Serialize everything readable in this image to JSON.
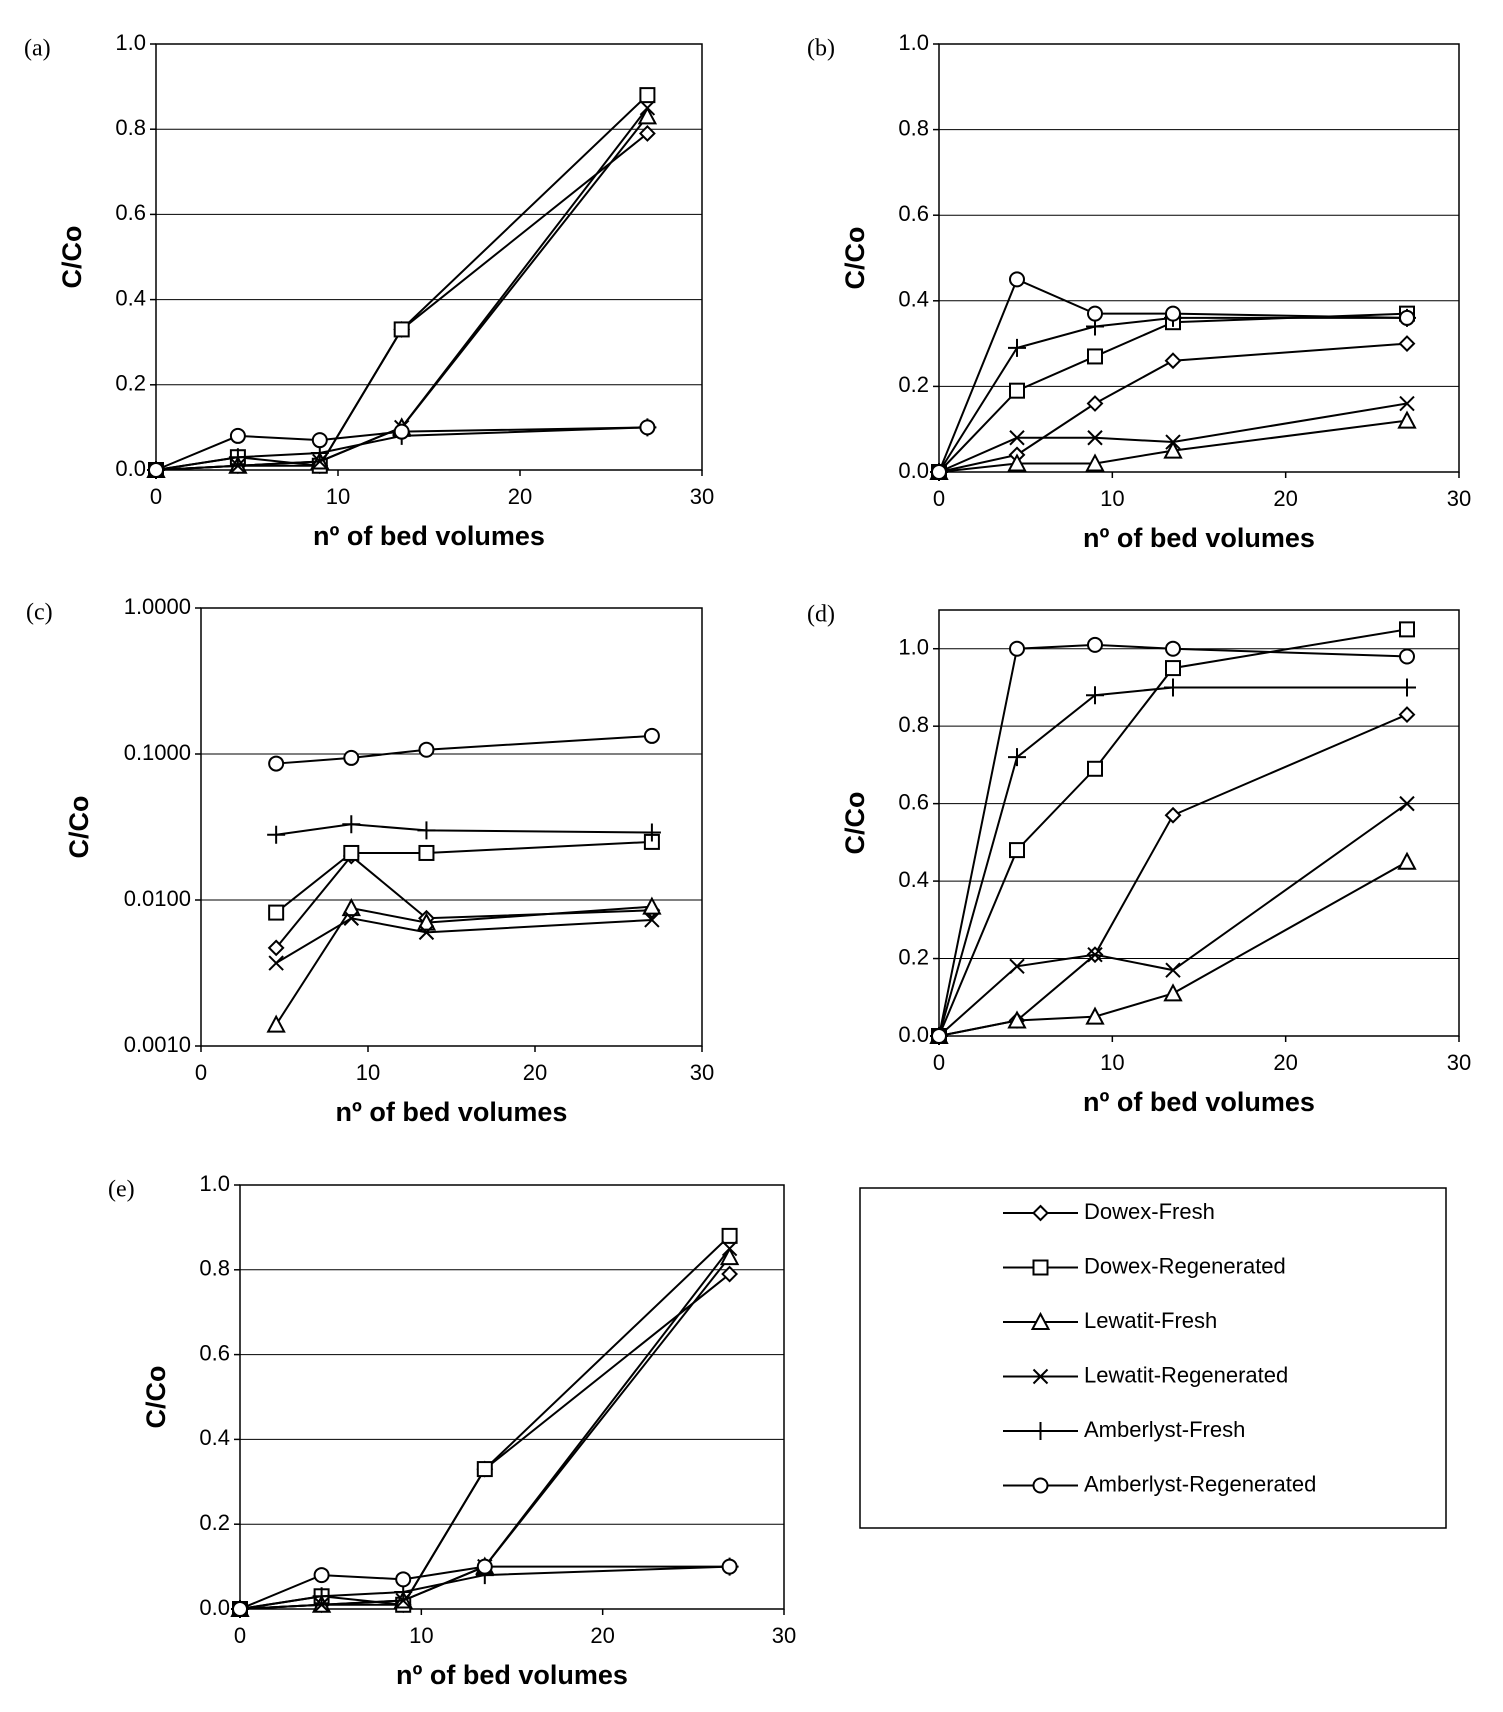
{
  "chart_data": [
    {
      "type": "line",
      "label": "(a)",
      "ylabel": "C/Co",
      "xlabel": "nº of bed volumes",
      "x": [
        0,
        4.5,
        9,
        13.5,
        27
      ],
      "xlim": [
        0,
        30
      ],
      "xticks": [
        0,
        10,
        20,
        30
      ],
      "ylim": [
        0,
        1
      ],
      "yticks": [
        {
          "value": 0,
          "label": "0.0"
        },
        {
          "value": 0.2,
          "label": "0.2"
        },
        {
          "value": 0.4,
          "label": "0.4"
        },
        {
          "value": 0.6,
          "label": "0.6"
        },
        {
          "value": 0.8,
          "label": "0.8"
        },
        {
          "value": 1,
          "label": "1.0"
        }
      ],
      "grid": true,
      "series": [
        {
          "name": "Dowex-Fresh",
          "marker": "diamond",
          "color": "#000000",
          "values": [
            0,
            0.01,
            0.01,
            0.33,
            0.79
          ]
        },
        {
          "name": "Dowex-Regenerated",
          "marker": "square",
          "color": "#000000",
          "values": [
            0,
            0.03,
            0.01,
            0.33,
            0.88
          ]
        },
        {
          "name": "Lewatit-Fresh",
          "marker": "triangle",
          "color": "#000000",
          "values": [
            0,
            0.01,
            0.02,
            0.1,
            0.83
          ]
        },
        {
          "name": "Lewatit-Regenerated",
          "marker": "cross",
          "color": "#000000",
          "values": [
            0,
            0.01,
            0.02,
            0.1,
            0.85
          ]
        },
        {
          "name": "Amberlyst-Fresh",
          "marker": "plus",
          "color": "#000000",
          "values": [
            0,
            0.03,
            0.04,
            0.08,
            0.1
          ]
        },
        {
          "name": "Amberlyst-Regenerated",
          "marker": "circle",
          "color": "#000000",
          "values": [
            0,
            0.08,
            0.07,
            0.09,
            0.1
          ]
        }
      ]
    },
    {
      "type": "line",
      "label": "(b)",
      "ylabel": "C/Co",
      "xlabel": "nº of bed volumes",
      "x": [
        0,
        4.5,
        9,
        13.5,
        27
      ],
      "xlim": [
        0,
        30
      ],
      "xticks": [
        0,
        10,
        20,
        30
      ],
      "ylim": [
        0,
        1
      ],
      "yticks": [
        {
          "value": 0,
          "label": "0.0"
        },
        {
          "value": 0.2,
          "label": "0.2"
        },
        {
          "value": 0.4,
          "label": "0.4"
        },
        {
          "value": 0.6,
          "label": "0.6"
        },
        {
          "value": 0.8,
          "label": "0.8"
        },
        {
          "value": 1,
          "label": "1.0"
        }
      ],
      "grid": true,
      "series": [
        {
          "name": "Dowex-Fresh",
          "marker": "diamond",
          "color": "#000000",
          "values": [
            0,
            0.04,
            0.16,
            0.26,
            0.3
          ]
        },
        {
          "name": "Dowex-Regenerated",
          "marker": "square",
          "color": "#000000",
          "values": [
            0,
            0.19,
            0.27,
            0.35,
            0.37
          ]
        },
        {
          "name": "Lewatit-Fresh",
          "marker": "triangle",
          "color": "#000000",
          "values": [
            0,
            0.02,
            0.02,
            0.05,
            0.12
          ]
        },
        {
          "name": "Lewatit-Regenerated",
          "marker": "cross",
          "color": "#000000",
          "values": [
            0,
            0.08,
            0.08,
            0.07,
            0.16
          ]
        },
        {
          "name": "Amberlyst-Fresh",
          "marker": "plus",
          "color": "#000000",
          "values": [
            0,
            0.29,
            0.34,
            0.36,
            0.36
          ]
        },
        {
          "name": "Amberlyst-Regenerated",
          "marker": "circle",
          "color": "#000000",
          "values": [
            0,
            0.45,
            0.37,
            0.37,
            0.36
          ]
        }
      ]
    },
    {
      "type": "line",
      "label": "(c)",
      "ylabel": "C/Co",
      "xlabel": "nº of bed volumes",
      "x": [
        4.5,
        9,
        13.5,
        27
      ],
      "xlim": [
        0,
        30
      ],
      "xticks": [
        0,
        10,
        20,
        30
      ],
      "log_y": true,
      "ylim": [
        0.001,
        1
      ],
      "yticks": [
        {
          "value": 0.001,
          "label": "0.0010"
        },
        {
          "value": 0.01,
          "label": "0.0100"
        },
        {
          "value": 0.1,
          "label": "0.1000"
        },
        {
          "value": 1,
          "label": "1.0000"
        }
      ],
      "grid": true,
      "series": [
        {
          "name": "Dowex-Fresh",
          "marker": "diamond",
          "color": "#000000",
          "values": [
            0.0047,
            0.02,
            0.0075,
            0.0085
          ]
        },
        {
          "name": "Dowex-Regenerated",
          "marker": "square",
          "color": "#000000",
          "values": [
            0.0082,
            0.021,
            0.021,
            0.025
          ]
        },
        {
          "name": "Lewatit-Fresh",
          "marker": "triangle",
          "color": "#000000",
          "values": [
            0.0014,
            0.0088,
            0.007,
            0.009
          ]
        },
        {
          "name": "Lewatit-Regenerated",
          "marker": "cross",
          "color": "#000000",
          "values": [
            0.0037,
            0.0075,
            0.006,
            0.0073
          ]
        },
        {
          "name": "Amberlyst-Fresh",
          "marker": "plus",
          "color": "#000000",
          "values": [
            0.028,
            0.033,
            0.03,
            0.029
          ]
        },
        {
          "name": "Amberlyst-Regenerated",
          "marker": "circle",
          "color": "#000000",
          "values": [
            0.086,
            0.094,
            0.107,
            0.133
          ]
        }
      ]
    },
    {
      "type": "line",
      "label": "(d)",
      "ylabel": "C/Co",
      "xlabel": "nº of bed volumes",
      "x": [
        0,
        4.5,
        9,
        13.5,
        27
      ],
      "xlim": [
        0,
        30
      ],
      "xticks": [
        0,
        10,
        20,
        30
      ],
      "ylim": [
        0,
        1.1
      ],
      "yticks": [
        {
          "value": 0,
          "label": "0.0"
        },
        {
          "value": 0.2,
          "label": "0.2"
        },
        {
          "value": 0.4,
          "label": "0.4"
        },
        {
          "value": 0.6,
          "label": "0.6"
        },
        {
          "value": 0.8,
          "label": "0.8"
        },
        {
          "value": 1,
          "label": "1.0"
        }
      ],
      "grid": true,
      "series": [
        {
          "name": "Dowex-Fresh",
          "marker": "diamond",
          "color": "#000000",
          "values": [
            0,
            0.04,
            0.21,
            0.57,
            0.83
          ]
        },
        {
          "name": "Dowex-Regenerated",
          "marker": "square",
          "color": "#000000",
          "values": [
            0,
            0.48,
            0.69,
            0.95,
            1.05
          ]
        },
        {
          "name": "Lewatit-Fresh",
          "marker": "triangle",
          "color": "#000000",
          "values": [
            0,
            0.04,
            0.05,
            0.11,
            0.45
          ]
        },
        {
          "name": "Lewatit-Regenerated",
          "marker": "cross",
          "color": "#000000",
          "values": [
            0,
            0.18,
            0.21,
            0.17,
            0.6
          ]
        },
        {
          "name": "Amberlyst-Fresh",
          "marker": "plus",
          "color": "#000000",
          "values": [
            0,
            0.72,
            0.88,
            0.9,
            0.9
          ]
        },
        {
          "name": "Amberlyst-Regenerated",
          "marker": "circle",
          "color": "#000000",
          "values": [
            0,
            1.0,
            1.01,
            1.0,
            0.98
          ]
        }
      ]
    },
    {
      "type": "line",
      "label": "(e)",
      "ylabel": "C/Co",
      "xlabel": "nº of bed volumes",
      "x": [
        0,
        4.5,
        9,
        13.5,
        27
      ],
      "xlim": [
        0,
        30
      ],
      "xticks": [
        0,
        10,
        20,
        30
      ],
      "ylim": [
        0,
        1
      ],
      "yticks": [
        {
          "value": 0,
          "label": "0.0"
        },
        {
          "value": 0.2,
          "label": "0.2"
        },
        {
          "value": 0.4,
          "label": "0.4"
        },
        {
          "value": 0.6,
          "label": "0.6"
        },
        {
          "value": 0.8,
          "label": "0.8"
        },
        {
          "value": 1,
          "label": "1.0"
        }
      ],
      "grid": true,
      "series": [
        {
          "name": "Dowex-Fresh",
          "marker": "diamond",
          "color": "#000000",
          "values": [
            0,
            0.01,
            0.01,
            0.33,
            0.79
          ]
        },
        {
          "name": "Dowex-Regenerated",
          "marker": "square",
          "color": "#000000",
          "values": [
            0,
            0.03,
            0.01,
            0.33,
            0.88
          ]
        },
        {
          "name": "Lewatit-Fresh",
          "marker": "triangle",
          "color": "#000000",
          "values": [
            0,
            0.01,
            0.02,
            0.1,
            0.83
          ]
        },
        {
          "name": "Lewatit-Regenerated",
          "marker": "cross",
          "color": "#000000",
          "values": [
            0,
            0.01,
            0.02,
            0.1,
            0.85
          ]
        },
        {
          "name": "Amberlyst-Fresh",
          "marker": "plus",
          "color": "#000000",
          "values": [
            0,
            0.03,
            0.04,
            0.08,
            0.1
          ]
        },
        {
          "name": "Amberlyst-Regenerated",
          "marker": "circle",
          "color": "#000000",
          "values": [
            0,
            0.08,
            0.07,
            0.1,
            0.1
          ]
        }
      ]
    }
  ]
}
